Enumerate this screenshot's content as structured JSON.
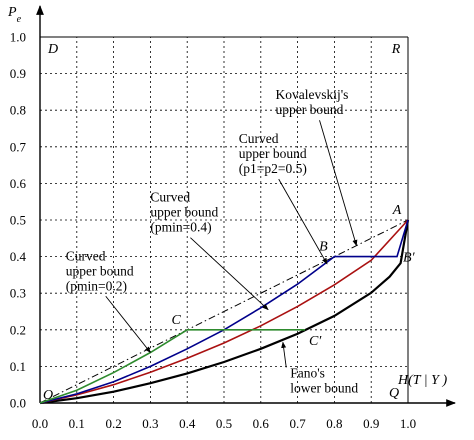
{
  "chart_data": {
    "type": "line",
    "xlabel": "H(T|Y)",
    "ylabel": "Pe",
    "xlim": [
      0,
      1
    ],
    "ylim": [
      0,
      1
    ],
    "x_ticks": [
      "0.0",
      "0.1",
      "0.2",
      "0.3",
      "0.4",
      "0.5",
      "0.6",
      "0.7",
      "0.8",
      "0.9",
      "1.0"
    ],
    "y_ticks": [
      "0.0",
      "0.1",
      "0.2",
      "0.3",
      "0.4",
      "0.5",
      "0.6",
      "0.7",
      "0.8",
      "0.9",
      "1.0"
    ],
    "grid": true,
    "series": [
      {
        "key": "kovalevskij",
        "color": "#000000",
        "style": "dashdot",
        "x": [
          0,
          1
        ],
        "y": [
          0,
          0.5
        ]
      },
      {
        "key": "fano",
        "color": "#000000",
        "style": "solid-thick",
        "x": [
          0,
          0.1,
          0.2,
          0.3,
          0.4,
          0.5,
          0.6,
          0.7,
          0.8,
          0.9,
          0.95,
          0.98,
          1.0
        ],
        "y": [
          0,
          0.013,
          0.031,
          0.054,
          0.081,
          0.112,
          0.148,
          0.189,
          0.238,
          0.301,
          0.345,
          0.382,
          0.5
        ]
      },
      {
        "key": "red",
        "color": "#aa1111",
        "style": "solid",
        "x": [
          0,
          0.1,
          0.2,
          0.3,
          0.4,
          0.5,
          0.6,
          0.7,
          0.8,
          0.9,
          1.0
        ],
        "y": [
          0,
          0.022,
          0.05,
          0.084,
          0.122,
          0.164,
          0.211,
          0.264,
          0.323,
          0.39,
          0.5
        ]
      },
      {
        "key": "blue",
        "color": "#00008b",
        "style": "solid",
        "x": [
          0,
          0.1,
          0.2,
          0.3,
          0.4,
          0.5,
          0.6,
          0.7,
          0.8,
          0.97,
          1.0
        ],
        "y": [
          0,
          0.025,
          0.058,
          0.1,
          0.148,
          0.2,
          0.26,
          0.325,
          0.4,
          0.4,
          0.5
        ]
      },
      {
        "key": "green",
        "color": "#2e8b2e",
        "style": "solid",
        "x": [
          0,
          0.1,
          0.2,
          0.3,
          0.4,
          0.72
        ],
        "y": [
          0,
          0.035,
          0.083,
          0.138,
          0.2,
          0.2
        ]
      }
    ],
    "points": [
      {
        "label": "O",
        "x": 0,
        "y": 0,
        "pos": "above-left"
      },
      {
        "label": "A",
        "x": 1.0,
        "y": 0.5,
        "pos": "above-left"
      },
      {
        "label": "B",
        "x": 0.8,
        "y": 0.4,
        "pos": "above-left"
      },
      {
        "label": "B′",
        "x": 0.97,
        "y": 0.4,
        "pos": "right"
      },
      {
        "label": "C",
        "x": 0.4,
        "y": 0.2,
        "pos": "above-left"
      },
      {
        "label": "C′",
        "x": 0.72,
        "y": 0.2,
        "pos": "below-right"
      },
      {
        "label": "D",
        "x": 0,
        "y": 1,
        "pos": "below-right"
      },
      {
        "label": "R",
        "x": 1,
        "y": 1,
        "pos": "below-left"
      },
      {
        "label": "Q",
        "x": 1,
        "y": 0,
        "pos": "above-left"
      }
    ],
    "annotations": [
      {
        "lines": [
          "Kovalevskij's",
          "upper bound"
        ],
        "text_x": 0.64,
        "text_y": 0.83,
        "arrow_to": [
          0.86,
          0.43
        ]
      },
      {
        "lines": [
          "Curved",
          "upper bound",
          "(p1=p2=0.5)"
        ],
        "text_x": 0.54,
        "text_y": 0.71,
        "arrow_to": [
          0.78,
          0.38
        ]
      },
      {
        "lines": [
          "Curved",
          "upper bound",
          "(pmin=0.4)"
        ],
        "text_x": 0.3,
        "text_y": 0.55,
        "arrow_to": [
          0.62,
          0.255
        ]
      },
      {
        "lines": [
          "Curved",
          "upper bound",
          "(pmin=0.2)"
        ],
        "text_x": 0.07,
        "text_y": 0.39,
        "arrow_to": [
          0.3,
          0.138
        ]
      },
      {
        "lines": [
          "Fano's",
          "lower bound"
        ],
        "text_x": 0.68,
        "text_y": 0.07,
        "arrow_to": [
          0.66,
          0.166
        ]
      }
    ]
  }
}
